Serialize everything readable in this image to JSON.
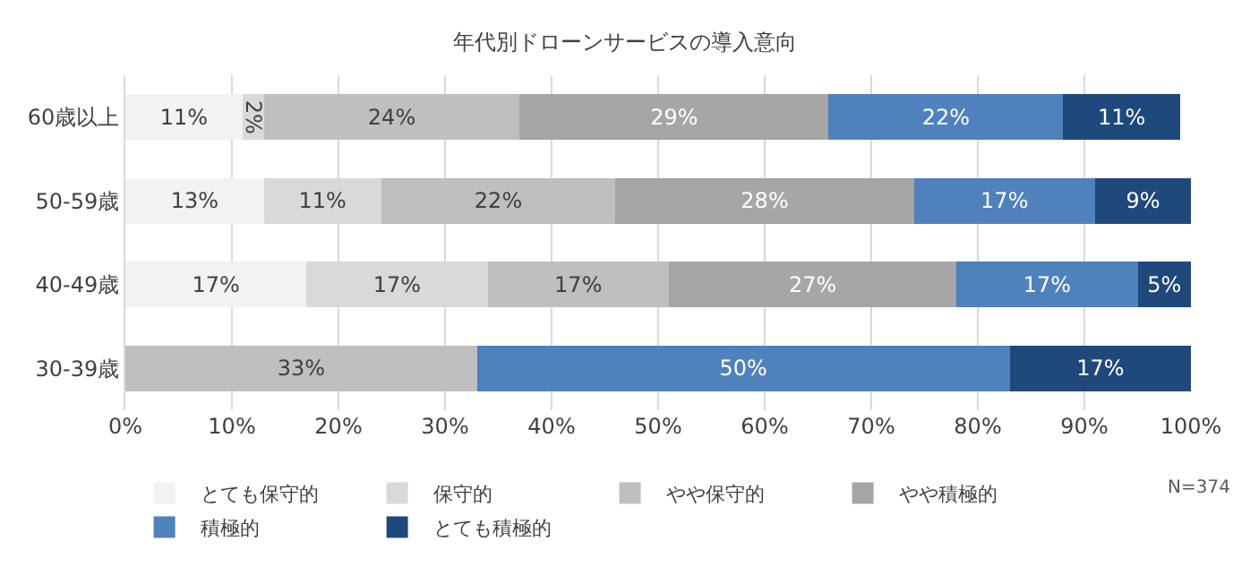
{
  "chart_data": {
    "type": "bar",
    "orientation": "horizontal",
    "stacked": true,
    "title": "年代別ドローンサービスの導入意向",
    "categories": [
      "60歳以上",
      "50-59歳",
      "40-49歳",
      "30-39歳"
    ],
    "series": [
      {
        "name": "とても保守的",
        "color": "#f2f2f2",
        "values": [
          11,
          13,
          17,
          null
        ],
        "value_labels": [
          "11%",
          "13%",
          "17%",
          null
        ]
      },
      {
        "name": "保守的",
        "color": "#d9d9d9",
        "values": [
          2,
          11,
          17,
          null
        ],
        "value_labels": [
          "2%",
          "11%",
          "17%",
          null
        ]
      },
      {
        "name": "やや保守的",
        "color": "#bfbfbf",
        "values": [
          24,
          22,
          17,
          33
        ],
        "value_labels": [
          "24%",
          "22%",
          "17%",
          "33%"
        ]
      },
      {
        "name": "やや積極的",
        "color": "#a6a6a6",
        "values": [
          29,
          28,
          27,
          null
        ],
        "value_labels": [
          "29%",
          "28%",
          "27%",
          null
        ]
      },
      {
        "name": "積極的",
        "color": "#4f81bd",
        "values": [
          22,
          17,
          17,
          50
        ],
        "value_labels": [
          "22%",
          "17%",
          "17%",
          "50%"
        ]
      },
      {
        "name": "とても積極的",
        "color": "#1f497d",
        "values": [
          11,
          9,
          5,
          17
        ],
        "value_labels": [
          "11%",
          "9%",
          "5%",
          "17%"
        ]
      }
    ],
    "xlim": [
      0,
      100
    ],
    "xticks": [
      {
        "value": 0,
        "label": "0%"
      },
      {
        "value": 10,
        "label": "10%"
      },
      {
        "value": 20,
        "label": "20%"
      },
      {
        "value": 30,
        "label": "30%"
      },
      {
        "value": 40,
        "label": "40%"
      },
      {
        "value": 50,
        "label": "50%"
      },
      {
        "value": 60,
        "label": "60%"
      },
      {
        "value": 70,
        "label": "70%"
      },
      {
        "value": 80,
        "label": "80%"
      },
      {
        "value": 90,
        "label": "90%"
      },
      {
        "value": 100,
        "label": "100%"
      }
    ],
    "grid": "x",
    "legend": "bottom",
    "annotations": [
      "N=374"
    ]
  }
}
